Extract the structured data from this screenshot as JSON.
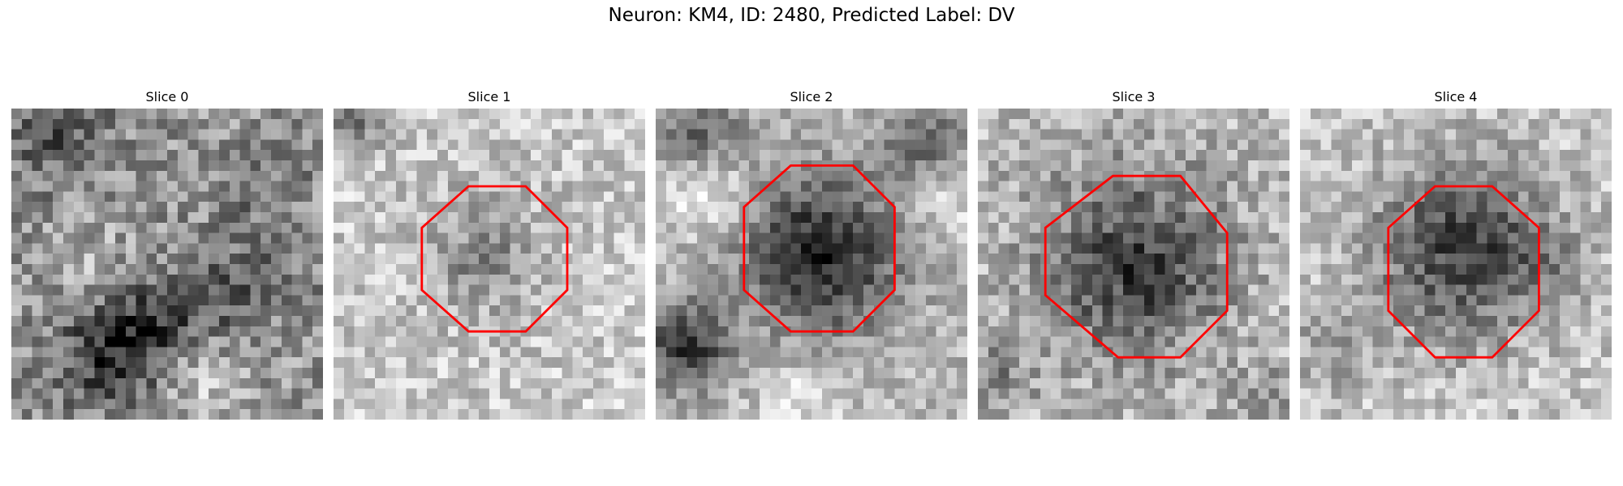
{
  "figure": {
    "title": "Neuron: KM4, ID: 2480, Predicted Label: DV"
  },
  "slices": [
    {
      "label": "Slice 0",
      "outline": false
    },
    {
      "label": "Slice 1",
      "outline": true
    },
    {
      "label": "Slice 2",
      "outline": true
    },
    {
      "label": "Slice 3",
      "outline": true
    },
    {
      "label": "Slice 4",
      "outline": true
    }
  ],
  "colors": {
    "outline": "#ff0000",
    "background": "#ffffff"
  }
}
